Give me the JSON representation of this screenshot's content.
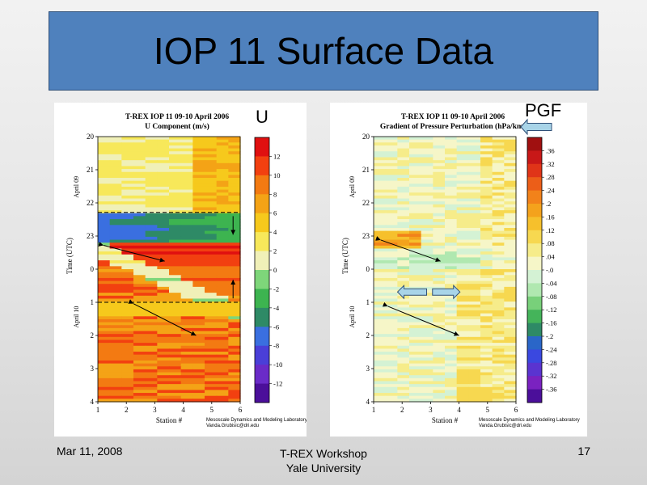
{
  "slide": {
    "title": "IOP 11 Surface Data",
    "footer_date": "Mar 11, 2008",
    "footer_event_line1": "T-REX Workshop",
    "footer_event_line2": "Yale University",
    "page_number": "17"
  },
  "chart_data": [
    {
      "id": "u-component",
      "type": "heatmap",
      "header": "T-REX  IOP 11  09-10 April 2006",
      "title": "U Component (m/s)",
      "panel_label": "U",
      "xlabel": "Station #",
      "ylabel": "Time (UTC)",
      "xlim": [
        1,
        6
      ],
      "x_ticks": [
        "1",
        "2",
        "3",
        "4",
        "5",
        "6"
      ],
      "y_ticks": [
        "20",
        "21",
        "22",
        "23",
        "0",
        "1",
        "2",
        "3",
        "4"
      ],
      "date_labels": [
        "April 09",
        "April 10"
      ],
      "colorbar_values": [
        12,
        10,
        8,
        6,
        4,
        2,
        0,
        -2,
        -4,
        -6,
        -8,
        -10,
        -12
      ],
      "colorbar_colors": [
        "#e01010",
        "#f24010",
        "#f37a12",
        "#f4a316",
        "#f6c91c",
        "#f7e85a",
        "#f0f0b8",
        "#7ed67a",
        "#3db450",
        "#2e8a66",
        "#3a6fe0",
        "#4a3fd8",
        "#6a2bc8",
        "#4b0f9a"
      ],
      "credit_line1": "Mesoscale Dynamics and Modeling Laboratory",
      "credit_line2": "Vanda.Grubisic@dri.edu"
    },
    {
      "id": "pgf",
      "type": "heatmap",
      "header": "T-REX  IOP 11  09-10 April 2006",
      "title": "Gradient of Pressure Perturbation (hPa/km)",
      "panel_label": "PGF",
      "xlabel": "Station #",
      "ylabel": "Time (UTC)",
      "xlim": [
        1,
        6
      ],
      "x_ticks": [
        "1",
        "2",
        "3",
        "4",
        "5",
        "6"
      ],
      "y_ticks": [
        "20",
        "21",
        "22",
        "23",
        "0",
        "1",
        "2",
        "3",
        "4"
      ],
      "date_labels": [
        "April 09",
        "April 10"
      ],
      "colorbar_values": [
        ".36",
        ".32",
        ".28",
        ".24",
        ".2",
        ".16",
        ".12",
        ".08",
        ".04",
        "-.0",
        "-.04",
        "-.08",
        "-.12",
        "-.16",
        "-.2",
        "-.24",
        "-.28",
        "-.32",
        "-.36"
      ],
      "colorbar_colors": [
        "#a01010",
        "#c81818",
        "#e03418",
        "#ec5e18",
        "#f2821a",
        "#f4a21c",
        "#f6c02c",
        "#f7d850",
        "#f6ec8a",
        "#f6f6c8",
        "#d4f2d4",
        "#b0e8b0",
        "#78d07a",
        "#44b45a",
        "#2e8a66",
        "#2a66c8",
        "#3a48e0",
        "#5a34d0",
        "#7a22c0",
        "#4b0f9a"
      ],
      "credit_line1": "Mesoscale Dynamics and Modeling Laboratory",
      "credit_line2": "Vanda.Grubisic@dri.edu"
    }
  ]
}
